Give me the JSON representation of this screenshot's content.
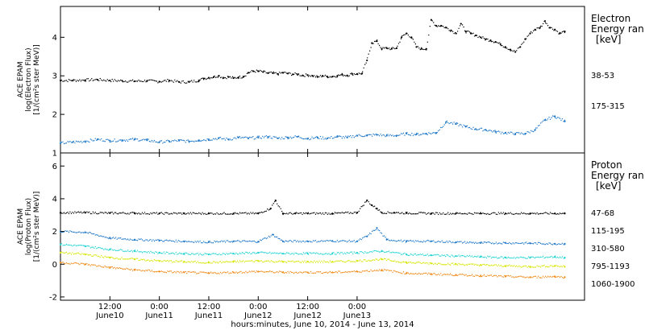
{
  "chart_data": [
    {
      "type": "scatter",
      "panel": "electron",
      "ylabel_lines": [
        "ACE EPAM",
        "log(Electron Flux)",
        "[1/(cm²s ster MeV)]"
      ],
      "ylim": [
        1.0,
        4.8
      ],
      "yticks": [
        1,
        2,
        3,
        4
      ],
      "legend_title": [
        "Electron",
        "Energy ran"
      ],
      "legend_unit": "[keV]",
      "series": [
        {
          "name": "38-53",
          "color": "#000000",
          "x": [
            0.0,
            0.25,
            0.5,
            0.75,
            1.0,
            1.25,
            1.5,
            1.75,
            2.0,
            2.2,
            2.4,
            2.6,
            2.8,
            2.9,
            3.0,
            3.1,
            3.2,
            3.3,
            3.4,
            3.5,
            3.6,
            3.7,
            3.8,
            3.9,
            4.0,
            4.1,
            4.2,
            4.3,
            4.4,
            4.5,
            4.6,
            4.7,
            4.8,
            4.9,
            5.0,
            5.1,
            5.2,
            5.3,
            5.4,
            5.5,
            5.6,
            5.7,
            5.8,
            5.9,
            6.0,
            6.1,
            6.2,
            6.3,
            6.4,
            6.5,
            6.6,
            6.7,
            6.8,
            6.9,
            7.0,
            7.1,
            7.2,
            7.3,
            7.4,
            7.5,
            7.6,
            7.7,
            7.8,
            7.9,
            8.0,
            8.1,
            8.2,
            8.3,
            8.4,
            8.5,
            8.6,
            8.7,
            8.8,
            8.9,
            9.0,
            9.1,
            9.2,
            9.3,
            9.4,
            9.5,
            9.6,
            9.7,
            9.8,
            9.9,
            10.0,
            10.1,
            10.2
          ],
          "y": [
            2.88,
            2.88,
            2.89,
            2.9,
            2.88,
            2.87,
            2.86,
            2.87,
            2.85,
            2.88,
            2.84,
            2.84,
            2.88,
            2.93,
            2.95,
            2.97,
            3.0,
            2.95,
            2.97,
            2.94,
            2.96,
            2.98,
            3.08,
            3.12,
            3.12,
            3.1,
            3.07,
            3.07,
            3.05,
            3.08,
            3.06,
            3.04,
            3.04,
            3.01,
            3.02,
            3.0,
            2.97,
            3.0,
            2.98,
            2.98,
            3.0,
            3.03,
            3.01,
            3.05,
            3.05,
            3.06,
            3.4,
            3.85,
            3.9,
            3.7,
            3.72,
            3.7,
            3.72,
            4.0,
            4.1,
            4.0,
            3.75,
            3.7,
            3.7,
            4.45,
            4.3,
            4.3,
            4.25,
            4.18,
            4.1,
            4.35,
            4.15,
            4.1,
            4.05,
            4.0,
            3.95,
            3.92,
            3.88,
            3.82,
            3.75,
            3.68,
            3.62,
            3.75,
            3.95,
            4.1,
            4.2,
            4.25,
            4.42,
            4.25,
            4.2,
            4.1,
            4.15
          ]
        },
        {
          "name": "175-315",
          "color": "#1f78c8",
          "x": [
            0.0,
            0.25,
            0.5,
            0.75,
            1.0,
            1.25,
            1.5,
            1.75,
            2.0,
            2.2,
            2.4,
            2.6,
            2.8,
            3.0,
            3.2,
            3.4,
            3.6,
            3.8,
            4.0,
            4.2,
            4.4,
            4.6,
            4.8,
            5.0,
            5.2,
            5.4,
            5.6,
            5.8,
            6.0,
            6.2,
            6.4,
            6.6,
            6.8,
            7.0,
            7.2,
            7.4,
            7.6,
            7.8,
            8.0,
            8.2,
            8.4,
            8.6,
            8.8,
            9.0,
            9.2,
            9.4,
            9.6,
            9.8,
            10.0,
            10.2
          ],
          "y": [
            1.25,
            1.28,
            1.3,
            1.35,
            1.32,
            1.33,
            1.35,
            1.33,
            1.28,
            1.3,
            1.32,
            1.3,
            1.33,
            1.35,
            1.38,
            1.35,
            1.4,
            1.38,
            1.4,
            1.42,
            1.38,
            1.4,
            1.42,
            1.37,
            1.4,
            1.38,
            1.42,
            1.4,
            1.45,
            1.45,
            1.47,
            1.45,
            1.45,
            1.5,
            1.48,
            1.5,
            1.52,
            1.8,
            1.75,
            1.68,
            1.62,
            1.6,
            1.55,
            1.52,
            1.5,
            1.5,
            1.6,
            1.85,
            1.95,
            1.82
          ]
        }
      ]
    },
    {
      "type": "scatter",
      "panel": "proton",
      "ylabel_lines": [
        "ACE EPAM",
        "log(Proton Flux)",
        "[1/(cm²s ster MeV)]"
      ],
      "ylim": [
        -2.2,
        6.8
      ],
      "yticks": [
        -2,
        0,
        2,
        4,
        6
      ],
      "legend_title": [
        "Proton",
        "Energy ran"
      ],
      "legend_unit": "[keV]",
      "series": [
        {
          "name": "47-68",
          "color": "#000000",
          "x": [
            0.0,
            0.5,
            1.0,
            1.5,
            2.0,
            2.5,
            3.0,
            3.5,
            4.0,
            4.25,
            4.35,
            4.5,
            4.75,
            5.0,
            5.5,
            6.0,
            6.2,
            6.3,
            6.4,
            6.5,
            6.75,
            7.0,
            7.5,
            8.0,
            8.5,
            9.0,
            9.5,
            10.0,
            10.2
          ],
          "y": [
            3.15,
            3.15,
            3.12,
            3.12,
            3.1,
            3.1,
            3.1,
            3.1,
            3.1,
            3.4,
            3.9,
            3.1,
            3.1,
            3.1,
            3.1,
            3.15,
            3.9,
            3.6,
            3.4,
            3.15,
            3.15,
            3.12,
            3.1,
            3.1,
            3.1,
            3.1,
            3.1,
            3.1,
            3.1
          ]
        },
        {
          "name": "115-195",
          "color": "#1f78c8",
          "x": [
            0.0,
            0.5,
            1.0,
            1.5,
            2.0,
            2.5,
            3.0,
            3.5,
            4.0,
            4.3,
            4.5,
            5.0,
            5.5,
            6.0,
            6.2,
            6.4,
            6.6,
            7.0,
            7.5,
            8.0,
            8.5,
            9.0,
            9.5,
            10.0,
            10.2
          ],
          "y": [
            2.0,
            1.95,
            1.6,
            1.5,
            1.45,
            1.4,
            1.35,
            1.4,
            1.38,
            1.8,
            1.4,
            1.4,
            1.42,
            1.4,
            1.7,
            2.2,
            1.5,
            1.4,
            1.4,
            1.35,
            1.3,
            1.3,
            1.28,
            1.25,
            1.25
          ]
        },
        {
          "name": "310-580",
          "color": "#22d3d3",
          "x": [
            0.0,
            0.5,
            1.0,
            1.5,
            2.0,
            2.5,
            3.0,
            3.5,
            4.0,
            4.5,
            5.0,
            5.5,
            6.0,
            6.5,
            7.0,
            7.5,
            8.0,
            8.5,
            9.0,
            9.5,
            10.0,
            10.2
          ],
          "y": [
            1.2,
            1.1,
            0.9,
            0.8,
            0.7,
            0.65,
            0.6,
            0.65,
            0.7,
            0.65,
            0.65,
            0.65,
            0.7,
            0.8,
            0.6,
            0.55,
            0.5,
            0.45,
            0.4,
            0.4,
            0.45,
            0.4
          ]
        },
        {
          "name": "795-1193",
          "color": "#d6e600",
          "x": [
            0.0,
            0.5,
            1.0,
            1.5,
            2.0,
            2.5,
            3.0,
            3.5,
            4.0,
            4.5,
            5.0,
            5.5,
            6.0,
            6.5,
            7.0,
            7.5,
            8.0,
            8.5,
            9.0,
            9.5,
            10.0,
            10.2
          ],
          "y": [
            0.7,
            0.6,
            0.4,
            0.3,
            0.2,
            0.15,
            0.1,
            0.15,
            0.2,
            0.15,
            0.15,
            0.15,
            0.2,
            0.3,
            0.1,
            0.05,
            0.0,
            -0.05,
            -0.1,
            -0.15,
            -0.1,
            -0.15
          ]
        },
        {
          "name": "1060-1900",
          "color": "#f08c1a",
          "x": [
            0.0,
            0.5,
            1.0,
            1.5,
            2.0,
            2.5,
            3.0,
            3.5,
            4.0,
            4.5,
            5.0,
            5.5,
            6.0,
            6.5,
            7.0,
            7.5,
            8.0,
            8.5,
            9.0,
            9.5,
            10.0,
            10.2
          ],
          "y": [
            0.1,
            0.0,
            -0.2,
            -0.35,
            -0.45,
            -0.5,
            -0.55,
            -0.5,
            -0.45,
            -0.5,
            -0.5,
            -0.5,
            -0.45,
            -0.35,
            -0.55,
            -0.6,
            -0.65,
            -0.7,
            -0.75,
            -0.8,
            -0.75,
            -0.8
          ]
        }
      ]
    }
  ],
  "x_axis": {
    "ticks": [
      {
        "t": 1.0,
        "time": "12:00",
        "date": "June10"
      },
      {
        "t": 2.0,
        "time": "0:00",
        "date": "June11"
      },
      {
        "t": 3.0,
        "time": "12:00",
        "date": "June11"
      },
      {
        "t": 4.0,
        "time": "0:00",
        "date": "June12"
      },
      {
        "t": 5.0,
        "time": "12:00",
        "date": "June12"
      },
      {
        "t": 6.0,
        "time": "0:00",
        "date": "June13"
      }
    ],
    "label": "hours:minutes, June 10, 2014 - June 13, 2014"
  }
}
